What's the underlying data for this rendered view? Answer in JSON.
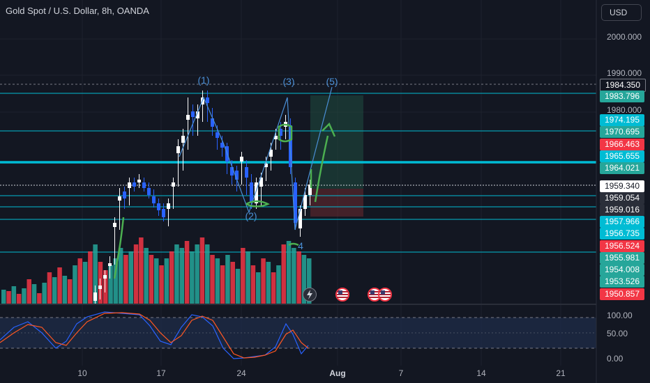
{
  "header": {
    "title": "Gold Spot / U.S. Dollar, 8h, OANDA"
  },
  "currency_button": {
    "label": "USD"
  },
  "price_axis": {
    "ticks": [
      "2000.000",
      "1990.000",
      "1980.000"
    ],
    "badges": [
      {
        "label": "1984.350",
        "color": "#131722",
        "bordered": true
      },
      {
        "label": "1983.796",
        "color": "#26a69a"
      },
      {
        "label": "1974.195",
        "color": "#00bcd4"
      },
      {
        "label": "1970.695",
        "color": "#26a69a"
      },
      {
        "label": "1966.463",
        "color": "#f23645"
      },
      {
        "label": "1965.655",
        "color": "#00bcd4"
      },
      {
        "label": "1964.021",
        "color": "#26a69a"
      },
      {
        "label": "1959.340",
        "color": "#ffffff"
      },
      {
        "label": "1959.054",
        "color": "#2a2e39"
      },
      {
        "label": "1959.016",
        "color": "#2a2e39"
      },
      {
        "label": "1957.966",
        "color": "#00bcd4"
      },
      {
        "label": "1956.735",
        "color": "#00bcd4"
      },
      {
        "label": "1956.524",
        "color": "#f23645"
      },
      {
        "label": "1955.981",
        "color": "#26a69a"
      },
      {
        "label": "1954.008",
        "color": "#26a69a"
      },
      {
        "label": "1953.526",
        "color": "#26a69a"
      },
      {
        "label": "1950.857",
        "color": "#f23645"
      }
    ]
  },
  "time_axis": {
    "ticks": [
      {
        "label": "10",
        "bold": false
      },
      {
        "label": "17",
        "bold": false
      },
      {
        "label": "24",
        "bold": false
      },
      {
        "label": "Aug",
        "bold": true
      },
      {
        "label": "7",
        "bold": false
      },
      {
        "label": "14",
        "bold": false
      },
      {
        "label": "21",
        "bold": false
      }
    ]
  },
  "oscillator": {
    "ticks": [
      "100.00",
      "50.00",
      "0.00"
    ]
  },
  "wave_labels": [
    "(1)",
    "(2)",
    "(3)",
    "4",
    "(5)"
  ],
  "events": {
    "icons": [
      "lightning-icon",
      "us-flag-icon",
      "us-flag-icon",
      "us-flag-icon"
    ]
  },
  "colors": {
    "background": "#131722",
    "bull_candle": "#ffffff",
    "bear_candle": "#2962ff",
    "volume_up": "#26a69a",
    "volume_down": "#f23645",
    "level_line": "#00bcd4",
    "stoch_k": "#2962ff",
    "stoch_d": "#ff5722",
    "drawing_green": "#4caf50",
    "wave_blue": "#4a8fd6"
  }
}
